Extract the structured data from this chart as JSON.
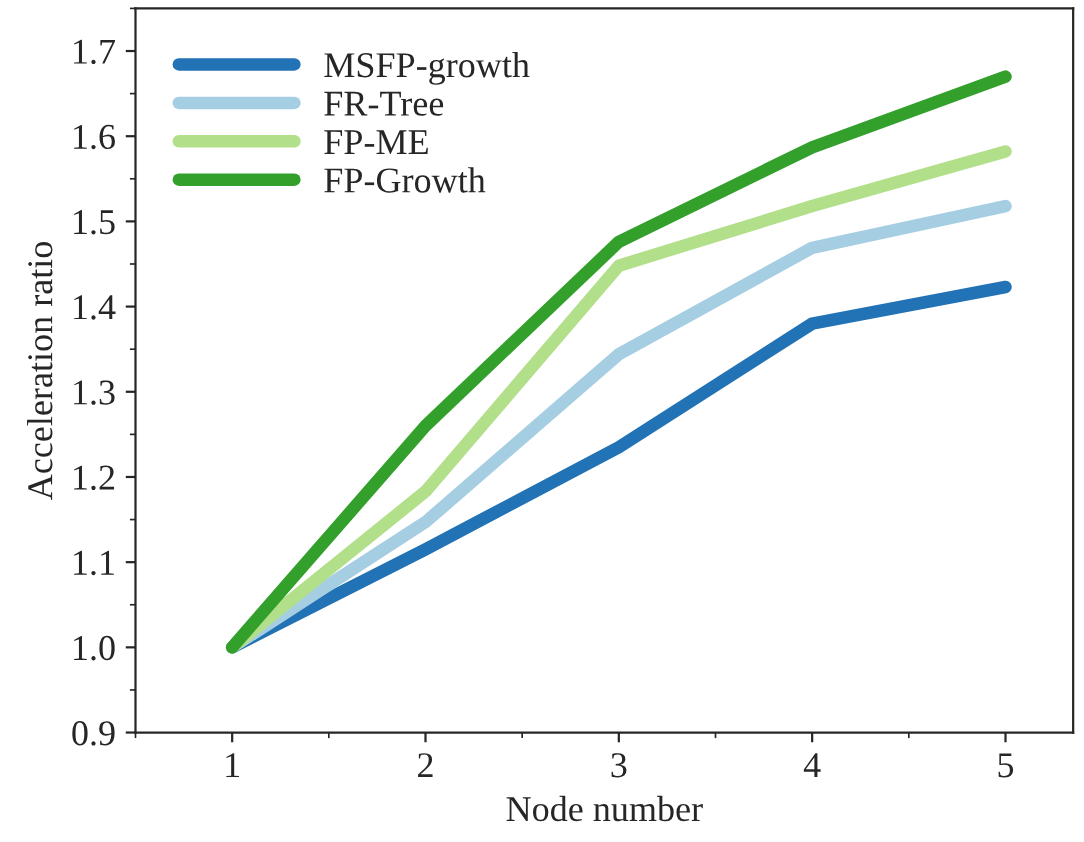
{
  "chart_data": {
    "type": "line",
    "xlabel": "Node number",
    "ylabel": "Acceleration ratio",
    "x": [
      1,
      2,
      3,
      4,
      5
    ],
    "series": [
      {
        "name": "MSFP-growth",
        "color": "#2273b5",
        "values": [
          1.0,
          1.115,
          1.235,
          1.38,
          1.423
        ]
      },
      {
        "name": "FR-Tree",
        "color": "#a6cee3",
        "values": [
          1.0,
          1.147,
          1.344,
          1.469,
          1.518
        ]
      },
      {
        "name": "FP-ME",
        "color": "#b2df8a",
        "values": [
          1.0,
          1.183,
          1.448,
          1.518,
          1.582
        ]
      },
      {
        "name": "FP-Growth",
        "color": "#33a02c",
        "values": [
          1.0,
          1.26,
          1.476,
          1.587,
          1.67
        ]
      }
    ],
    "xlim": [
      0.5,
      5.35
    ],
    "xticks": [
      1,
      2,
      3,
      4,
      5
    ],
    "ylim": [
      0.9,
      1.75
    ],
    "yticks": [
      0.9,
      {
        "value": 1.0,
        "label": "1.0"
      },
      1.1,
      1.2,
      1.3,
      1.4,
      1.5,
      1.6,
      1.7
    ],
    "legend": "top left",
    "grid": false,
    "line_style": "solid",
    "marker": "none"
  }
}
